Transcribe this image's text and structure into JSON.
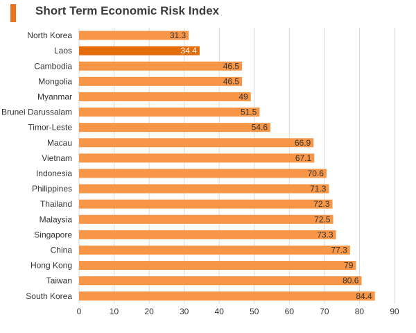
{
  "chart_data": {
    "type": "bar",
    "orientation": "horizontal",
    "title": "Short Term Economic Risk Index",
    "categories": [
      "North Korea",
      "Laos",
      "Cambodia",
      "Mongolia",
      "Myanmar",
      "Brunei Darussalam",
      "Timor-Leste",
      "Macau",
      "Vietnam",
      "Indonesia",
      "Philippines",
      "Thailand",
      "Malaysia",
      "Singapore",
      "China",
      "Hong Kong",
      "Taiwan",
      "South Korea"
    ],
    "values": [
      31.3,
      34.4,
      46.5,
      46.5,
      49,
      51.5,
      54.6,
      66.9,
      67.1,
      70.6,
      71.3,
      72.3,
      72.5,
      73.3,
      77.3,
      79,
      80.6,
      84.4
    ],
    "value_labels": [
      "31.3",
      "34.4",
      "46.5",
      "46.5",
      "49",
      "51.5",
      "54.6",
      "66.9",
      "67.1",
      "70.6",
      "71.3",
      "72.3",
      "72.5",
      "73.3",
      "77.3",
      "79",
      "80.6",
      "84.4"
    ],
    "highlighted": "Laos",
    "xlim": [
      0,
      90
    ],
    "xticks": [
      "0",
      "10",
      "20",
      "30",
      "40",
      "50",
      "60",
      "70",
      "80",
      "90"
    ],
    "xlabel": "",
    "ylabel": "",
    "grid": true,
    "legend": false,
    "colors": {
      "bar": "#f79646",
      "highlight": "#e46c0a",
      "accent": "#e8731e",
      "grid": "#d9d9d9"
    }
  }
}
